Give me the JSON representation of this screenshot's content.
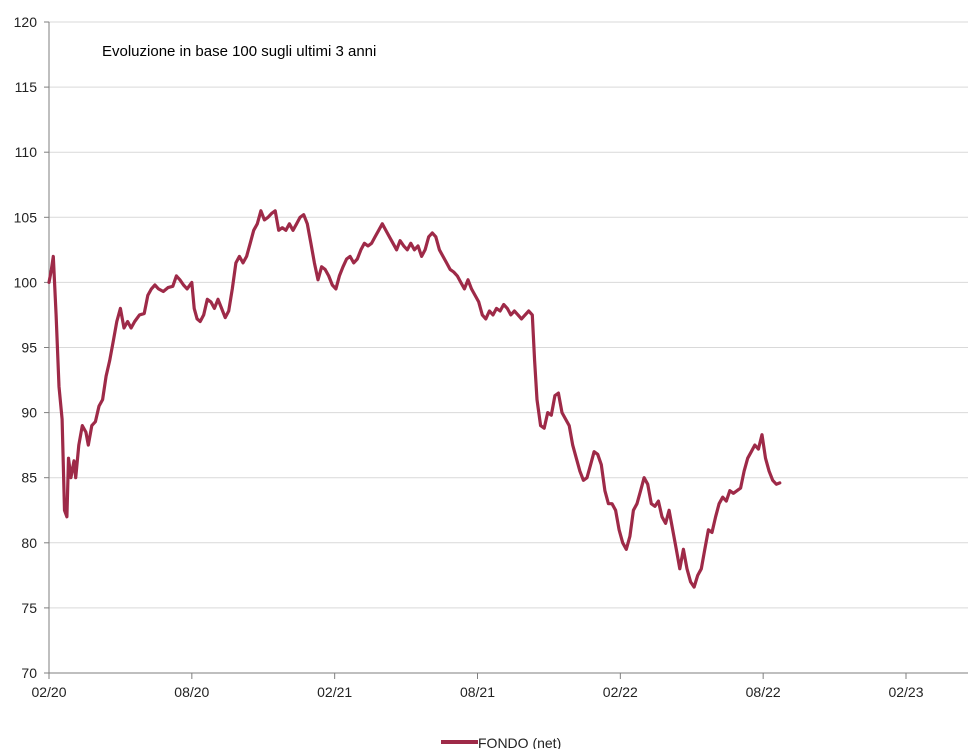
{
  "chart_data": {
    "type": "line",
    "title": "Evoluzione in base 100 sugli ultimi 3 anni",
    "ylim": [
      70,
      120
    ],
    "yticks": [
      70,
      75,
      80,
      85,
      90,
      95,
      100,
      105,
      110,
      115,
      120
    ],
    "xlim": [
      0,
      36
    ],
    "xticks": [
      {
        "x": 0,
        "label": "02/20"
      },
      {
        "x": 6,
        "label": "08/20"
      },
      {
        "x": 12,
        "label": "02/21"
      },
      {
        "x": 18,
        "label": "08/21"
      },
      {
        "x": 24,
        "label": "02/22"
      },
      {
        "x": 30,
        "label": "08/22"
      },
      {
        "x": 36,
        "label": "02/23"
      }
    ],
    "grid": true,
    "legend_position": "bottom",
    "series": [
      {
        "name": "FONDO (net)",
        "color": "#9e2a48",
        "points": [
          [
            0.0,
            100.0
          ],
          [
            0.1,
            101.0
          ],
          [
            0.18,
            102.0
          ],
          [
            0.3,
            97.5
          ],
          [
            0.42,
            92.0
          ],
          [
            0.55,
            89.5
          ],
          [
            0.65,
            82.5
          ],
          [
            0.75,
            82.0
          ],
          [
            0.82,
            86.5
          ],
          [
            0.92,
            85.0
          ],
          [
            1.05,
            86.3
          ],
          [
            1.12,
            85.0
          ],
          [
            1.25,
            87.5
          ],
          [
            1.4,
            89.0
          ],
          [
            1.55,
            88.5
          ],
          [
            1.65,
            87.5
          ],
          [
            1.8,
            89.0
          ],
          [
            1.95,
            89.3
          ],
          [
            2.1,
            90.5
          ],
          [
            2.25,
            91.0
          ],
          [
            2.4,
            92.8
          ],
          [
            2.55,
            94.0
          ],
          [
            2.7,
            95.5
          ],
          [
            2.85,
            97.0
          ],
          [
            3.0,
            98.0
          ],
          [
            3.15,
            96.5
          ],
          [
            3.3,
            97.0
          ],
          [
            3.45,
            96.5
          ],
          [
            3.6,
            97.0
          ],
          [
            3.8,
            97.5
          ],
          [
            4.0,
            97.6
          ],
          [
            4.15,
            99.0
          ],
          [
            4.3,
            99.5
          ],
          [
            4.45,
            99.8
          ],
          [
            4.6,
            99.5
          ],
          [
            4.8,
            99.3
          ],
          [
            5.0,
            99.6
          ],
          [
            5.2,
            99.7
          ],
          [
            5.35,
            100.5
          ],
          [
            5.5,
            100.2
          ],
          [
            5.65,
            99.8
          ],
          [
            5.8,
            99.5
          ],
          [
            6.0,
            100.0
          ],
          [
            6.1,
            98.0
          ],
          [
            6.22,
            97.2
          ],
          [
            6.35,
            97.0
          ],
          [
            6.5,
            97.5
          ],
          [
            6.65,
            98.7
          ],
          [
            6.8,
            98.5
          ],
          [
            6.95,
            98.0
          ],
          [
            7.1,
            98.7
          ],
          [
            7.25,
            98.0
          ],
          [
            7.4,
            97.3
          ],
          [
            7.55,
            97.8
          ],
          [
            7.7,
            99.5
          ],
          [
            7.85,
            101.5
          ],
          [
            8.0,
            102.0
          ],
          [
            8.15,
            101.5
          ],
          [
            8.3,
            102.0
          ],
          [
            8.45,
            103.0
          ],
          [
            8.6,
            104.0
          ],
          [
            8.75,
            104.5
          ],
          [
            8.9,
            105.5
          ],
          [
            9.05,
            104.8
          ],
          [
            9.2,
            105.0
          ],
          [
            9.35,
            105.3
          ],
          [
            9.5,
            105.5
          ],
          [
            9.65,
            104.0
          ],
          [
            9.8,
            104.2
          ],
          [
            9.95,
            104.0
          ],
          [
            10.1,
            104.5
          ],
          [
            10.25,
            104.0
          ],
          [
            10.4,
            104.5
          ],
          [
            10.55,
            105.0
          ],
          [
            10.7,
            105.2
          ],
          [
            10.85,
            104.5
          ],
          [
            11.0,
            103.0
          ],
          [
            11.15,
            101.5
          ],
          [
            11.3,
            100.2
          ],
          [
            11.45,
            101.2
          ],
          [
            11.6,
            101.0
          ],
          [
            11.75,
            100.5
          ],
          [
            11.9,
            99.8
          ],
          [
            12.05,
            99.5
          ],
          [
            12.2,
            100.5
          ],
          [
            12.35,
            101.2
          ],
          [
            12.5,
            101.8
          ],
          [
            12.65,
            102.0
          ],
          [
            12.8,
            101.5
          ],
          [
            12.95,
            101.8
          ],
          [
            13.1,
            102.5
          ],
          [
            13.25,
            103.0
          ],
          [
            13.4,
            102.8
          ],
          [
            13.55,
            103.0
          ],
          [
            13.7,
            103.5
          ],
          [
            13.85,
            104.0
          ],
          [
            14.0,
            104.5
          ],
          [
            14.15,
            104.0
          ],
          [
            14.3,
            103.5
          ],
          [
            14.45,
            103.0
          ],
          [
            14.6,
            102.5
          ],
          [
            14.75,
            103.2
          ],
          [
            14.9,
            102.8
          ],
          [
            15.05,
            102.5
          ],
          [
            15.2,
            103.0
          ],
          [
            15.35,
            102.5
          ],
          [
            15.5,
            102.8
          ],
          [
            15.65,
            102.0
          ],
          [
            15.8,
            102.5
          ],
          [
            15.95,
            103.5
          ],
          [
            16.1,
            103.8
          ],
          [
            16.25,
            103.5
          ],
          [
            16.4,
            102.5
          ],
          [
            16.55,
            102.0
          ],
          [
            16.7,
            101.5
          ],
          [
            16.85,
            101.0
          ],
          [
            17.0,
            100.8
          ],
          [
            17.15,
            100.5
          ],
          [
            17.3,
            100.0
          ],
          [
            17.45,
            99.5
          ],
          [
            17.6,
            100.2
          ],
          [
            17.75,
            99.5
          ],
          [
            17.9,
            99.0
          ],
          [
            18.05,
            98.5
          ],
          [
            18.2,
            97.5
          ],
          [
            18.35,
            97.2
          ],
          [
            18.5,
            97.8
          ],
          [
            18.65,
            97.5
          ],
          [
            18.8,
            98.0
          ],
          [
            18.95,
            97.8
          ],
          [
            19.1,
            98.3
          ],
          [
            19.25,
            98.0
          ],
          [
            19.4,
            97.5
          ],
          [
            19.55,
            97.8
          ],
          [
            19.7,
            97.5
          ],
          [
            19.85,
            97.2
          ],
          [
            20.0,
            97.5
          ],
          [
            20.15,
            97.8
          ],
          [
            20.3,
            97.5
          ],
          [
            20.4,
            94.0
          ],
          [
            20.5,
            91.0
          ],
          [
            20.65,
            89.0
          ],
          [
            20.8,
            88.8
          ],
          [
            20.95,
            90.0
          ],
          [
            21.1,
            89.8
          ],
          [
            21.25,
            91.3
          ],
          [
            21.4,
            91.5
          ],
          [
            21.55,
            90.0
          ],
          [
            21.7,
            89.5
          ],
          [
            21.85,
            89.0
          ],
          [
            22.0,
            87.5
          ],
          [
            22.15,
            86.5
          ],
          [
            22.3,
            85.5
          ],
          [
            22.45,
            84.8
          ],
          [
            22.6,
            85.0
          ],
          [
            22.75,
            86.0
          ],
          [
            22.9,
            87.0
          ],
          [
            23.05,
            86.8
          ],
          [
            23.2,
            86.0
          ],
          [
            23.35,
            84.0
          ],
          [
            23.5,
            83.0
          ],
          [
            23.65,
            83.0
          ],
          [
            23.8,
            82.5
          ],
          [
            23.95,
            81.0
          ],
          [
            24.1,
            80.0
          ],
          [
            24.25,
            79.5
          ],
          [
            24.4,
            80.5
          ],
          [
            24.55,
            82.5
          ],
          [
            24.7,
            83.0
          ],
          [
            24.85,
            84.0
          ],
          [
            25.0,
            85.0
          ],
          [
            25.15,
            84.5
          ],
          [
            25.3,
            83.0
          ],
          [
            25.45,
            82.8
          ],
          [
            25.6,
            83.2
          ],
          [
            25.75,
            82.0
          ],
          [
            25.9,
            81.5
          ],
          [
            26.05,
            82.5
          ],
          [
            26.2,
            81.0
          ],
          [
            26.35,
            79.5
          ],
          [
            26.5,
            78.0
          ],
          [
            26.65,
            79.5
          ],
          [
            26.8,
            78.0
          ],
          [
            26.95,
            77.0
          ],
          [
            27.1,
            76.6
          ],
          [
            27.25,
            77.5
          ],
          [
            27.4,
            78.0
          ],
          [
            27.55,
            79.5
          ],
          [
            27.7,
            81.0
          ],
          [
            27.85,
            80.8
          ],
          [
            28.0,
            82.0
          ],
          [
            28.15,
            83.0
          ],
          [
            28.3,
            83.5
          ],
          [
            28.45,
            83.2
          ],
          [
            28.6,
            84.0
          ],
          [
            28.75,
            83.8
          ],
          [
            28.9,
            84.0
          ],
          [
            29.05,
            84.2
          ],
          [
            29.2,
            85.5
          ],
          [
            29.35,
            86.5
          ],
          [
            29.5,
            87.0
          ],
          [
            29.65,
            87.5
          ],
          [
            29.8,
            87.2
          ],
          [
            29.95,
            88.3
          ],
          [
            30.1,
            86.5
          ],
          [
            30.25,
            85.5
          ],
          [
            30.4,
            84.8
          ],
          [
            30.55,
            84.5
          ],
          [
            30.7,
            84.6
          ]
        ]
      }
    ]
  }
}
